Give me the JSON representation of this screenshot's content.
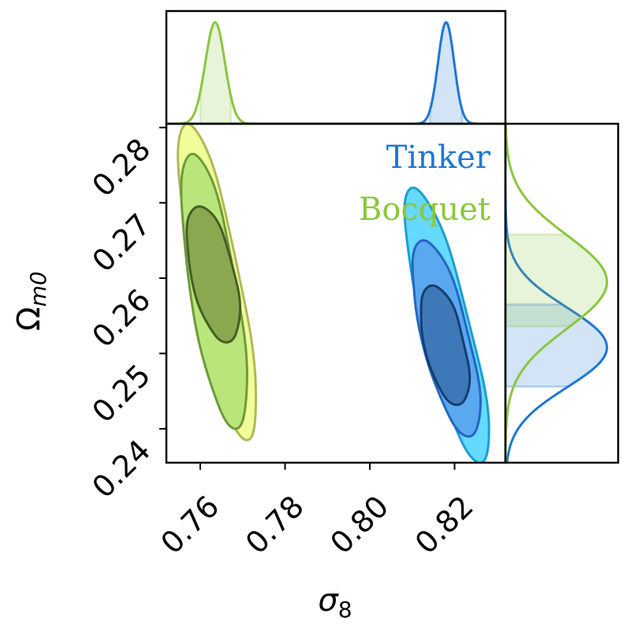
{
  "chart_data": {
    "type": "contour",
    "xlabel_symbol": "σ",
    "xlabel_sub": "8",
    "ylabel_symbol": "Ω",
    "ylabel_sub": "m0",
    "xlim": [
      0.752,
      0.832
    ],
    "ylim": [
      0.2355,
      0.2805
    ],
    "xticks": [
      0.76,
      0.78,
      0.8,
      0.82
    ],
    "xtick_labels": [
      "0.76",
      "0.78",
      "0.80",
      "0.82"
    ],
    "yticks": [
      0.24,
      0.25,
      0.26,
      0.27,
      0.28
    ],
    "ytick_labels": [
      "0.24",
      "0.25",
      "0.26",
      "0.27",
      "0.28"
    ],
    "legend_placement": "top-right",
    "series": [
      {
        "name": "Tinker",
        "color": "#1f77d4",
        "fills": [
          "#66d9ff",
          "#5aa8f0",
          "#3f78b8"
        ],
        "edges": [
          "#1e9ecf",
          "#2466c0",
          "#163e70"
        ],
        "sigma8_mean": 0.818,
        "sigma8_sd": 0.0019,
        "omega_mean": 0.2508,
        "omega_sd": 0.0053,
        "sigma8_interval": [
          0.8142,
          0.8218
        ],
        "omega_interval": [
          0.2456,
          0.2565
        ],
        "levels": [
          {
            "x_min": 0.8045,
            "x_max": 0.8318,
            "y_min": 0.2355,
            "y_max": 0.272
          },
          {
            "x_min": 0.8085,
            "x_max": 0.8275,
            "y_min": 0.239,
            "y_max": 0.265
          },
          {
            "x_min": 0.8122,
            "x_max": 0.8232,
            "y_min": 0.2432,
            "y_max": 0.259
          }
        ]
      },
      {
        "name": "Bocquet",
        "color": "#8cc63f",
        "fills": [
          "#f0ff99",
          "#b9e57a",
          "#8aa850"
        ],
        "edges": [
          "#b0b85a",
          "#6f9a3a",
          "#465e25"
        ],
        "sigma8_mean": 0.7635,
        "sigma8_sd": 0.0023,
        "omega_mean": 0.2595,
        "omega_sd": 0.0062,
        "sigma8_interval": [
          0.76,
          0.7672
        ],
        "omega_interval": [
          0.2536,
          0.2658
        ],
        "levels": [
          {
            "x_min": 0.752,
            "x_max": 0.776,
            "y_min": 0.2385,
            "y_max": 0.2805
          },
          {
            "x_min": 0.7545,
            "x_max": 0.772,
            "y_min": 0.24,
            "y_max": 0.2765
          },
          {
            "x_min": 0.757,
            "x_max": 0.769,
            "y_min": 0.2515,
            "y_max": 0.2695
          }
        ]
      }
    ]
  }
}
